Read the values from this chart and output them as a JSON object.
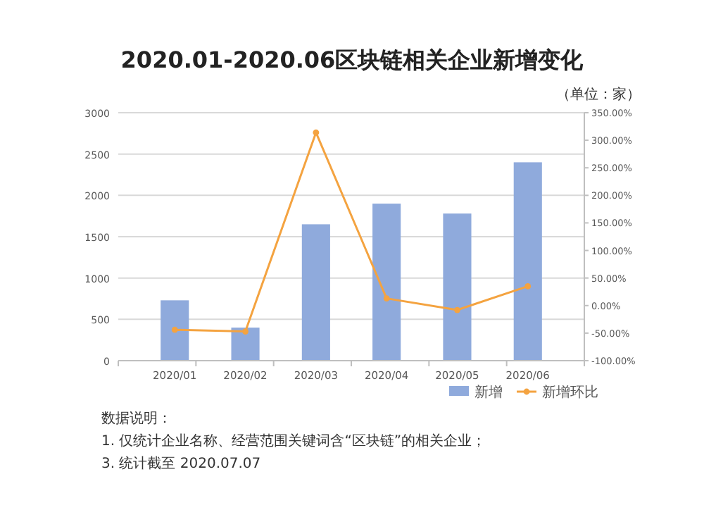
{
  "chart_data": {
    "type": "bar",
    "title": "2020.01-2020.06区块链相关企业新增变化",
    "categories": [
      "2020/01",
      "2020/02",
      "2020/03",
      "2020/04",
      "2020/05",
      "2020/06"
    ],
    "series": [
      {
        "name": "新增",
        "color": "#8faadc",
        "values": [
          730,
          400,
          1650,
          1900,
          1780,
          2400
        ]
      },
      {
        "name": "新增环比",
        "type": "line",
        "axis": "y2",
        "color": "#f4a340",
        "marker": "circle",
        "values": [
          -44,
          -47,
          314,
          13,
          -8,
          35
        ]
      }
    ],
    "ylim": [
      0,
      3000
    ],
    "yticks": [
      0,
      500,
      1000,
      1500,
      2000,
      2500,
      3000
    ],
    "y2lim": [
      -100,
      350
    ],
    "y2ticks": [
      {
        "value": -100,
        "label": "-100.00%"
      },
      {
        "value": -50,
        "label": "-50.00%"
      },
      {
        "value": 0,
        "label": "0.00%"
      },
      {
        "value": 50,
        "label": "50.00%"
      },
      {
        "value": 100,
        "label": "100.00%"
      },
      {
        "value": 150,
        "label": "150.00%"
      },
      {
        "value": 200,
        "label": "200.00%"
      },
      {
        "value": 250,
        "label": "250.00%"
      },
      {
        "value": 300,
        "label": "300.00%"
      },
      {
        "value": 350,
        "label": "350.00%"
      }
    ],
    "grid": "y",
    "legend": "bottom right",
    "annotations": [
      "（单位：家）",
      "数据说明：",
      "1. 仅统计企业名称、经营范围关键词含“区块链”的相关企业；",
      "3. 统计截至 2020.07.07"
    ]
  }
}
